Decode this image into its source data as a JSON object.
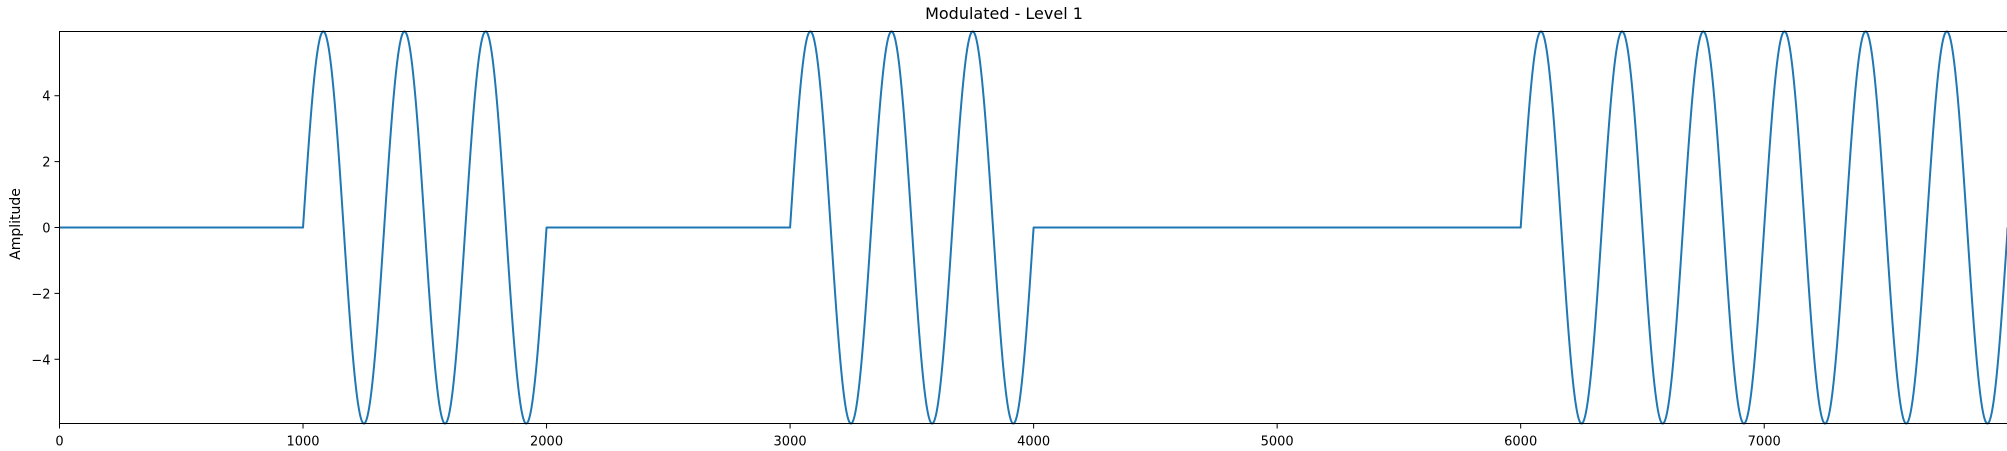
{
  "chart_data": {
    "type": "line",
    "title": "Modulated - Level 1",
    "xlabel": "",
    "ylabel": "Amplitude",
    "xlim": [
      0,
      7999
    ],
    "ylim": [
      -5.95,
      5.95
    ],
    "xticks": [
      0,
      1000,
      2000,
      3000,
      4000,
      5000,
      6000,
      7000
    ],
    "yticks": [
      -4,
      -2,
      0,
      2,
      4
    ],
    "grid": false,
    "legend": "none",
    "color": "#1f77b4",
    "series": [
      {
        "signal": "bursts of a sine carrier separated by zero segments",
        "amplitude": 5.95,
        "period": 333.3,
        "bursts": [
          {
            "x_start": 1000,
            "x_end": 2000,
            "start_value": 0,
            "end_value": 0
          },
          {
            "x_start": 3000,
            "x_end": 4000,
            "start_value": 0,
            "end_value": 0
          },
          {
            "x_start": 6000,
            "x_end": 7999,
            "start_value": 0,
            "end_value": 0
          }
        ],
        "zero_segments": [
          [
            0,
            1000
          ],
          [
            2000,
            3000
          ],
          [
            4000,
            6000
          ]
        ]
      }
    ]
  }
}
